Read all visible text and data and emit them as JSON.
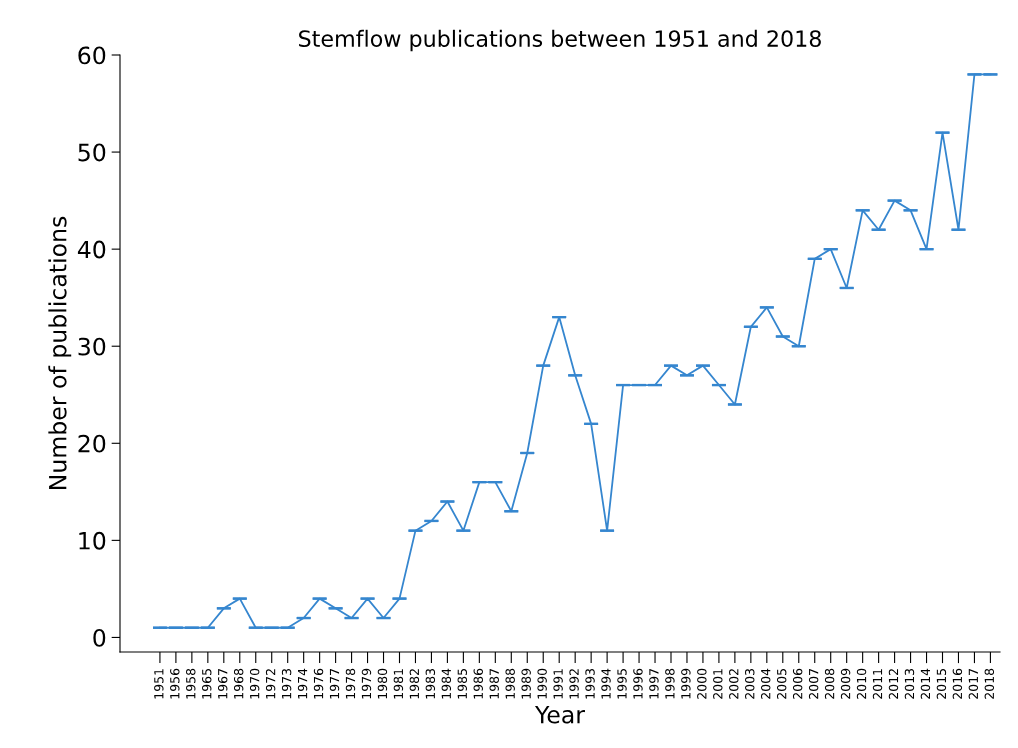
{
  "chart_data": {
    "type": "line",
    "title": "Stemflow publications between 1951 and 2018",
    "xlabel": "Year",
    "ylabel": "Number of publications",
    "categories": [
      "1951",
      "1956",
      "1958",
      "1965",
      "1967",
      "1968",
      "1970",
      "1972",
      "1973",
      "1974",
      "1976",
      "1977",
      "1978",
      "1979",
      "1980",
      "1981",
      "1982",
      "1983",
      "1984",
      "1985",
      "1986",
      "1987",
      "1988",
      "1989",
      "1990",
      "1991",
      "1992",
      "1993",
      "1994",
      "1995",
      "1996",
      "1997",
      "1998",
      "1999",
      "2000",
      "2001",
      "2002",
      "2003",
      "2004",
      "2005",
      "2006",
      "2007",
      "2008",
      "2009",
      "2010",
      "2011",
      "2012",
      "2013",
      "2014",
      "2015",
      "2016",
      "2017",
      "2018"
    ],
    "series": [
      {
        "color": "#3586cf",
        "values": [
          1,
          1,
          1,
          1,
          3,
          4,
          1,
          1,
          1,
          2,
          4,
          3,
          2,
          4,
          2,
          4,
          11,
          12,
          14,
          11,
          16,
          16,
          13,
          19,
          28,
          33,
          27,
          22,
          11,
          26,
          26,
          26,
          28,
          27,
          28,
          26,
          24,
          32,
          34,
          31,
          30,
          39,
          40,
          36,
          44,
          42,
          45,
          44,
          40,
          52,
          42,
          58,
          58
        ],
        "errors": [
          0,
          0,
          0,
          0,
          0,
          0,
          0,
          0,
          0,
          0,
          0,
          0,
          0,
          0,
          0,
          0,
          0,
          0,
          0,
          0,
          0,
          0,
          0,
          0,
          0,
          0,
          0,
          0,
          0,
          0,
          0,
          0,
          0,
          0,
          0,
          0,
          0,
          0,
          0,
          0,
          0,
          0,
          0,
          0,
          0,
          0,
          0,
          0,
          0,
          0,
          0,
          0,
          0
        ]
      }
    ],
    "ylim": [
      -1.5,
      60
    ],
    "yticks": [
      0,
      10,
      20,
      30,
      40,
      50,
      60
    ],
    "grid": false,
    "marker": "none",
    "line_style": "solid"
  }
}
